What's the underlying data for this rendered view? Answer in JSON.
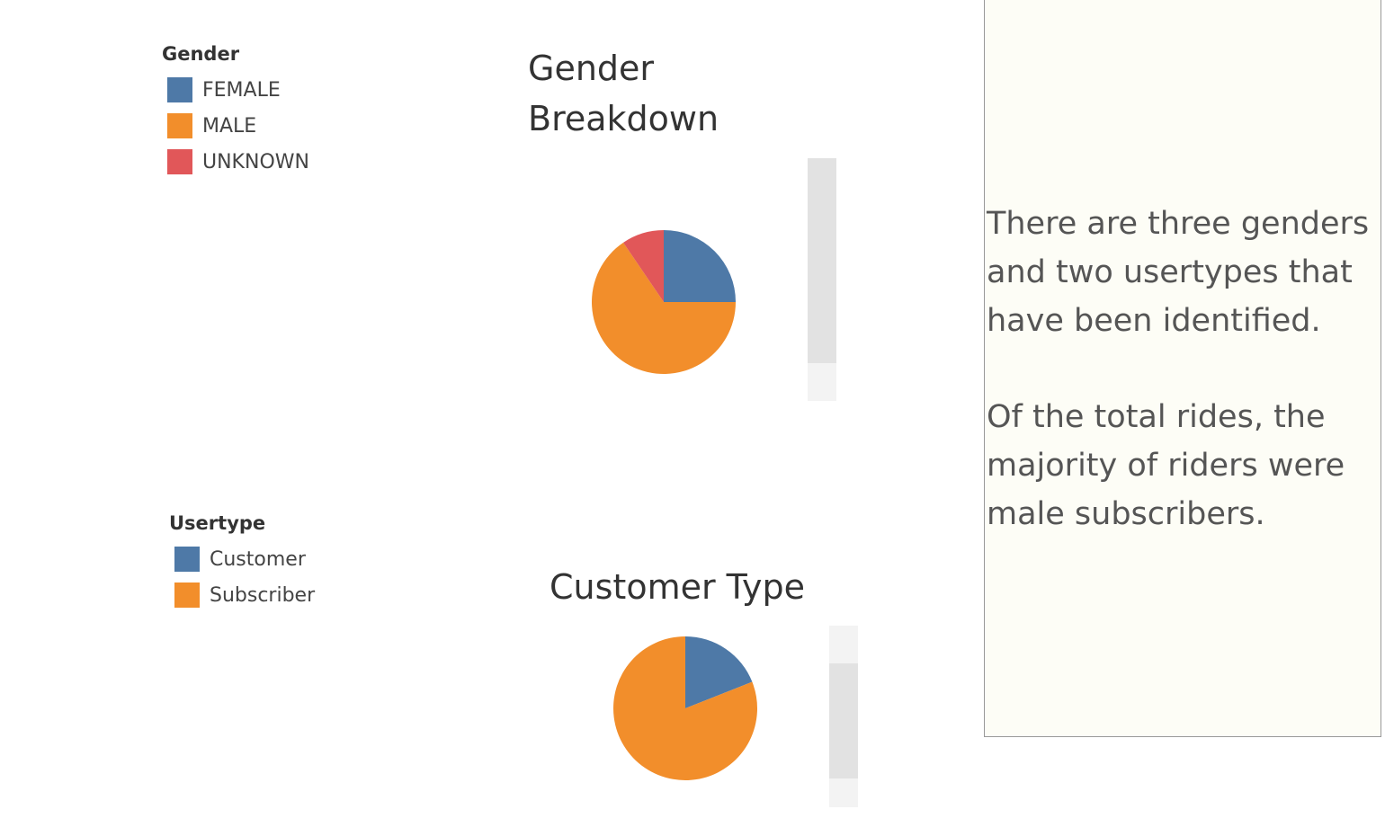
{
  "colors": {
    "blue": "#4e79a7",
    "orange": "#f28e2b",
    "red": "#e15759",
    "note_background": "#fdfdf6"
  },
  "legends": {
    "gender": {
      "title": "Gender",
      "items": [
        {
          "label": "FEMALE",
          "color": "#4e79a7"
        },
        {
          "label": "MALE",
          "color": "#f28e2b"
        },
        {
          "label": "UNKNOWN",
          "color": "#e15759"
        }
      ]
    },
    "usertype": {
      "title": "Usertype",
      "items": [
        {
          "label": "Customer",
          "color": "#4e79a7"
        },
        {
          "label": "Subscriber",
          "color": "#f28e2b"
        }
      ]
    }
  },
  "chart_data": [
    {
      "type": "pie",
      "title": "Gender Breakdown",
      "legend_title": "Gender",
      "legend_position": "left",
      "slices": [
        {
          "label": "FEMALE",
          "value": 25,
          "color": "#4e79a7"
        },
        {
          "label": "MALE",
          "value": 65.5,
          "color": "#f28e2b"
        },
        {
          "label": "UNKNOWN",
          "value": 9.5,
          "color": "#e15759"
        }
      ]
    },
    {
      "type": "pie",
      "title": "Customer Type",
      "legend_title": "Usertype",
      "legend_position": "left",
      "slices": [
        {
          "label": "Customer",
          "value": 19,
          "color": "#4e79a7"
        },
        {
          "label": "Subscriber",
          "value": 81,
          "color": "#f28e2b"
        }
      ]
    }
  ],
  "note": {
    "paragraph_1": "There are three genders and two usertypes that have been identified.",
    "paragraph_2": "Of the total rides, the majority of riders were male subscribers."
  }
}
